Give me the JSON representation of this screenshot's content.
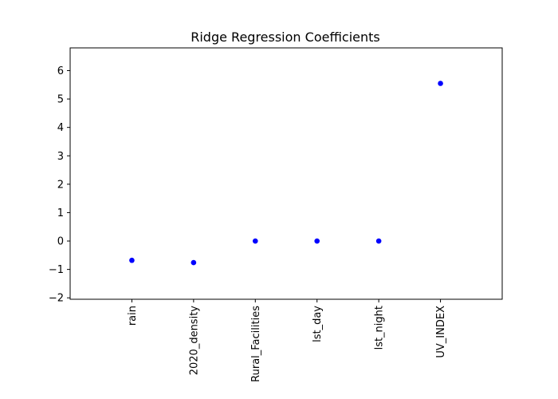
{
  "chart_data": {
    "type": "scatter",
    "title": "Ridge Regression Coefficients",
    "xlabel": "",
    "ylabel": "",
    "categories": [
      "rain",
      "2020_density",
      "Rural_Facilities",
      "lst_day",
      "lst_night",
      "UV_INDEX"
    ],
    "values": [
      -0.68,
      -0.76,
      0.0,
      0.0,
      0.0,
      5.55
    ],
    "ylim": [
      -2.05,
      6.8
    ],
    "xlim": [
      -1.0,
      6.0
    ],
    "yticks": [
      -2,
      -1,
      0,
      1,
      2,
      3,
      4,
      5,
      6
    ],
    "ytick_labels": [
      "−2",
      "−1",
      "0",
      "1",
      "2",
      "3",
      "4",
      "5",
      "6"
    ],
    "grid": false,
    "marker_color": "#0000ff"
  }
}
